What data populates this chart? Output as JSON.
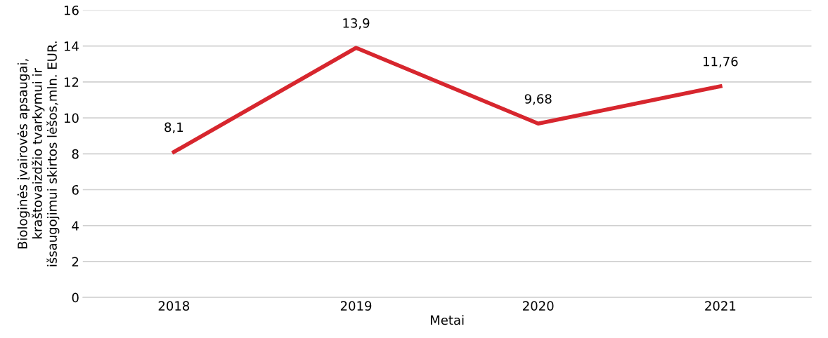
{
  "chart_data": {
    "type": "line",
    "xlabel": "Metai",
    "ylabel": "Biologinės įvairovės apsaugai,\nkraštovaizdžio tvarkymui ir\nišsaugojimui skirtos lėšos,mln. EUR.",
    "categories": [
      "2018",
      "2019",
      "2020",
      "2021"
    ],
    "series": [
      {
        "color": "#d7262e",
        "values": [
          8.1,
          13.9,
          9.68,
          11.76
        ],
        "value_labels": [
          "8,1",
          "13,9",
          "9,68",
          "11,76"
        ]
      }
    ],
    "ylim": [
      0,
      16
    ],
    "yticks": [
      0,
      2,
      4,
      6,
      8,
      10,
      12,
      14,
      16
    ],
    "grid": "y",
    "marker": "none",
    "line_style": "solid",
    "legend": false
  }
}
